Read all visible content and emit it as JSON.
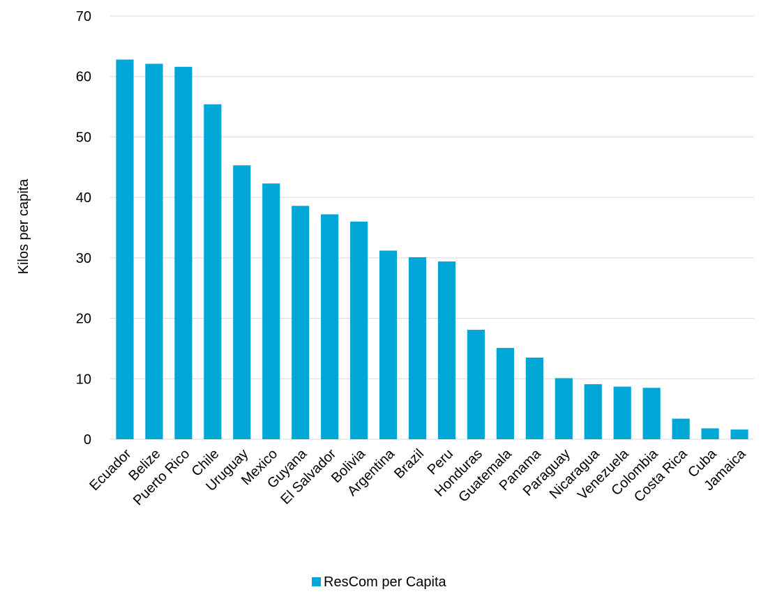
{
  "chart_data": {
    "type": "bar",
    "categories": [
      "Ecuador",
      "Belize",
      "Puerto Rico",
      "Chile",
      "Uruguay",
      "Mexico",
      "Guyana",
      "El Salvador",
      "Bolivia",
      "Argentina",
      "Brazil",
      "Peru",
      "Honduras",
      "Guatemala",
      "Panama",
      "Paraguay",
      "Nicaragua",
      "Venezuela",
      "Colombia",
      "Costa Rica",
      "Cuba",
      "Jamaica"
    ],
    "series": [
      {
        "name": "ResCom per Capita",
        "values": [
          62.8,
          62.1,
          61.6,
          55.4,
          45.3,
          42.3,
          38.6,
          37.2,
          36.0,
          31.2,
          30.1,
          29.4,
          18.1,
          15.1,
          13.5,
          10.1,
          9.1,
          8.7,
          8.5,
          3.4,
          1.8,
          1.6
        ]
      }
    ],
    "title": "",
    "xlabel": "",
    "ylabel": "Kilos per capita",
    "ylim": [
      0,
      70
    ],
    "yticks": [
      0,
      10,
      20,
      30,
      40,
      50,
      60,
      70
    ],
    "grid": true,
    "legend_position": "bottom",
    "colors": {
      "bar": "#00A6D6",
      "grid": "#D9D9D9",
      "text": "#000000"
    }
  }
}
